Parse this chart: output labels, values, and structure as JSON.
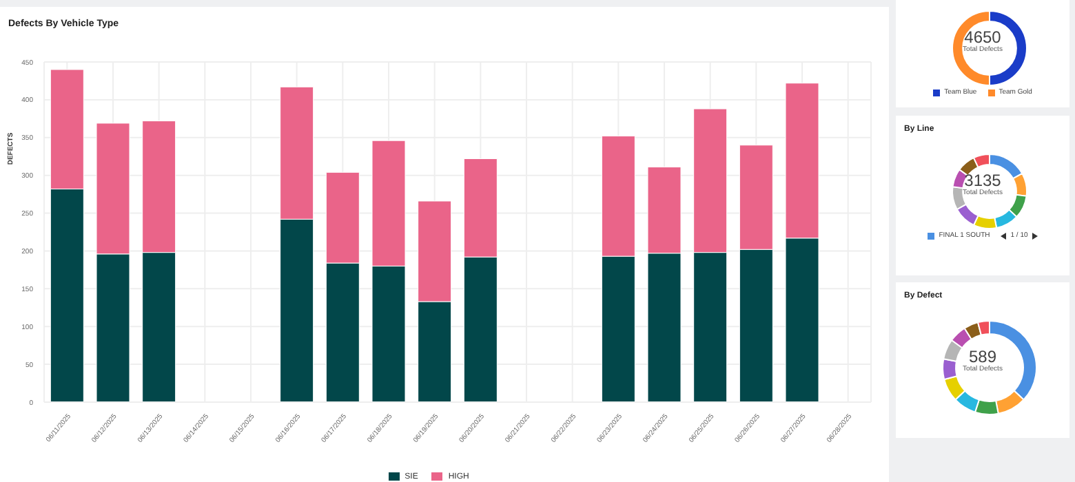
{
  "chart_data": [
    {
      "type": "bar",
      "title": "Defects By Vehicle Type",
      "ylabel": "DEFECTS",
      "categories": [
        "06/11/2025",
        "06/12/2025",
        "06/13/2025",
        "06/14/2025",
        "06/15/2025",
        "06/16/2025",
        "06/17/2025",
        "06/18/2025",
        "06/19/2025",
        "06/20/2025",
        "06/21/2025",
        "06/22/2025",
        "06/23/2025",
        "06/24/2025",
        "06/25/2025",
        "06/26/2025",
        "06/27/2025",
        "06/28/2025"
      ],
      "series": [
        {
          "name": "SIE",
          "color": "#02474a",
          "values": [
            282,
            196,
            198,
            null,
            null,
            242,
            184,
            180,
            133,
            192,
            null,
            null,
            193,
            197,
            198,
            202,
            217,
            null
          ]
        },
        {
          "name": "HIGH",
          "color": "#ea6489",
          "values": [
            158,
            173,
            174,
            null,
            null,
            175,
            120,
            166,
            133,
            130,
            null,
            null,
            159,
            114,
            190,
            138,
            205,
            null
          ]
        }
      ],
      "stacked": true,
      "ylim": [
        0,
        450
      ],
      "yticks": [
        0,
        50,
        100,
        150,
        200,
        250,
        300,
        350,
        400,
        450
      ],
      "grid": true,
      "legend": "bottom"
    },
    {
      "type": "donut",
      "categories": [
        "Team Blue",
        "Team Gold"
      ],
      "values": [
        50,
        50
      ],
      "colors": [
        "#1a3cc8",
        "#ff8a2a"
      ],
      "annotations": [
        "4650",
        "Total Defects"
      ],
      "legend": "bottom"
    },
    {
      "type": "donut",
      "title": "By Line",
      "categories": [
        "FINAL 1 SOUTH",
        null,
        null,
        null,
        null,
        null,
        null,
        null,
        null,
        null
      ],
      "values": [
        17,
        10,
        10,
        10,
        10,
        10,
        10,
        8,
        8,
        7
      ],
      "colors": [
        "#4a90e2",
        "#ffa133",
        "#3fa14a",
        "#27b8e0",
        "#e6d000",
        "#9a5fd0",
        "#b5b5b5",
        "#b94fb0",
        "#8b5e1a",
        "#f0505a"
      ],
      "annotations": [
        "3135",
        "Total Defects",
        "1 / 10"
      ],
      "legend": "bottom"
    },
    {
      "type": "donut",
      "title": "By Defect",
      "categories": [
        null,
        null,
        null,
        null,
        null,
        null,
        null,
        null,
        null,
        null
      ],
      "values": [
        37,
        10,
        8,
        8,
        8,
        7,
        7,
        6,
        5,
        4
      ],
      "colors": [
        "#4a90e2",
        "#ffa133",
        "#3fa14a",
        "#27b8e0",
        "#e6d000",
        "#9a5fd0",
        "#b5b5b5",
        "#b94fb0",
        "#8b5e1a",
        "#f0505a"
      ],
      "annotations": [
        "589",
        "Total Defects"
      ]
    }
  ]
}
